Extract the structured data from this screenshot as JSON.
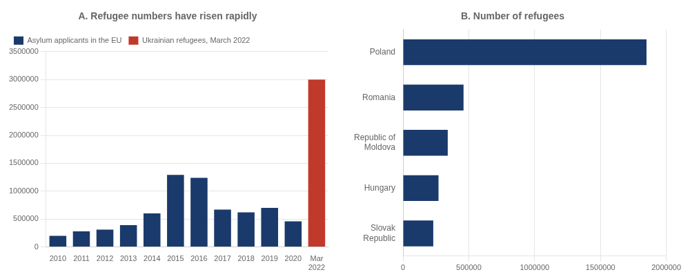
{
  "chart_data": [
    {
      "type": "bar",
      "title": "A. Refugee numbers have risen rapidly",
      "categories": [
        "2010",
        "2011",
        "2012",
        "2013",
        "2014",
        "2015",
        "2016",
        "2017",
        "2018",
        "2019",
        "2020",
        "Mar\n2022"
      ],
      "series": [
        {
          "name": "Asylum applicants in the EU",
          "color": "#1a3a6b",
          "values": [
            200000,
            280000,
            310000,
            390000,
            600000,
            1290000,
            1240000,
            670000,
            620000,
            700000,
            460000,
            null
          ]
        },
        {
          "name": "Ukrainian refugees, March 2022",
          "color": "#c0392b",
          "values": [
            null,
            null,
            null,
            null,
            null,
            null,
            null,
            null,
            null,
            null,
            null,
            3000000
          ]
        }
      ],
      "ylim": [
        0,
        3500000
      ],
      "yticks": [
        0,
        500000,
        1000000,
        1500000,
        2000000,
        2500000,
        3000000,
        3500000
      ],
      "grid": true,
      "legend": "upper left"
    },
    {
      "type": "bar",
      "title": "B. Number of refugees",
      "orientation": "horizontal",
      "categories": [
        "Poland",
        "Romania",
        "Republic of\nMoldova",
        "Hungary",
        "Slovak\nRepublic"
      ],
      "values": [
        1850000,
        460000,
        340000,
        270000,
        230000
      ],
      "color": "#1a3a6b",
      "xlim": [
        0,
        2000000
      ],
      "xticks": [
        0,
        500000,
        1000000,
        1500000,
        2000000
      ],
      "grid": true
    }
  ]
}
